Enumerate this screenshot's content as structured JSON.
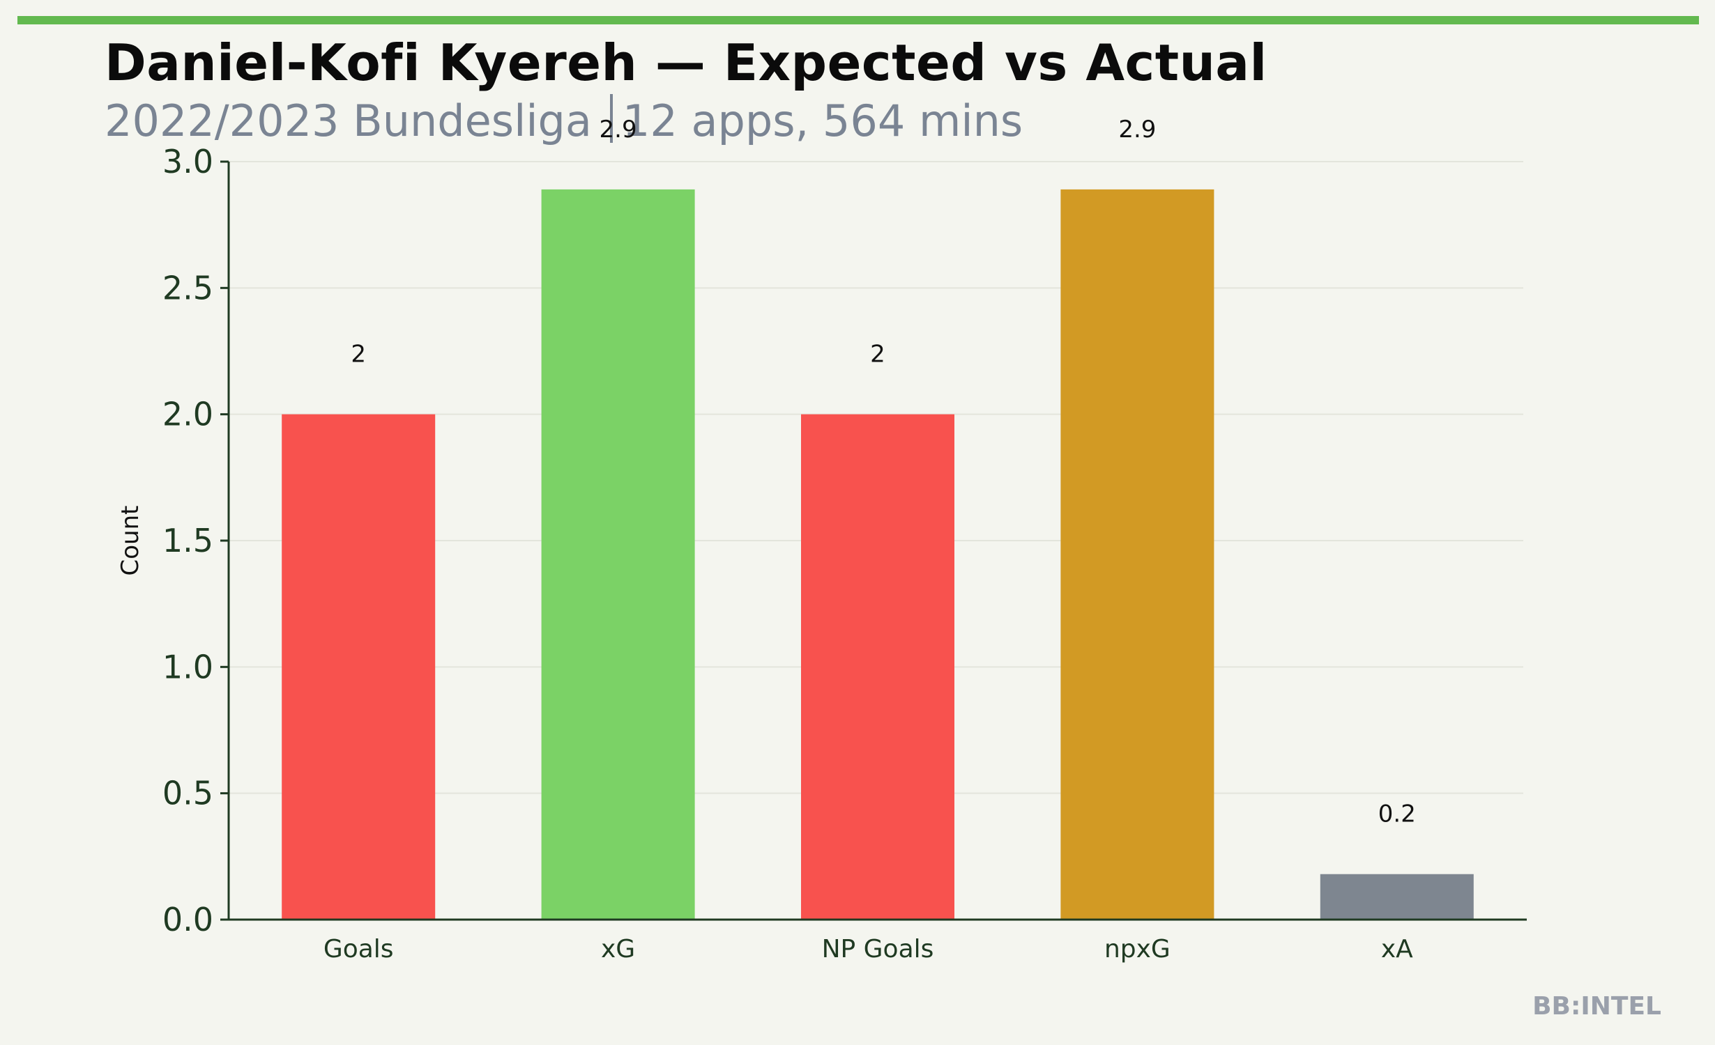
{
  "header": {
    "title": "Daniel-Kofi Kyereh — Expected vs Actual",
    "subtitle_league": "2022/2023 Bundesliga",
    "subtitle_stats": "12 apps, 564 mins"
  },
  "branding": "BB:INTEL",
  "colors": {
    "accent": "#62b94f",
    "goals": "#f8524e",
    "xg": "#7bd266",
    "npxg": "#d29a24",
    "xa": "#7e8690",
    "axis": "#1f3a22"
  },
  "chart_data": {
    "type": "bar",
    "categories": [
      "Goals",
      "xG",
      "NP Goals",
      "npxG",
      "xA"
    ],
    "values": [
      2,
      2.89,
      2,
      2.89,
      0.18
    ],
    "data_labels": [
      "2",
      "2.9",
      "2",
      "2.9",
      "0.2"
    ],
    "bar_colors": [
      "#f8524e",
      "#7bd266",
      "#f8524e",
      "#d29a24",
      "#7e8690"
    ],
    "ylabel": "Count",
    "xlabel": "",
    "ylim": [
      0,
      3.0
    ],
    "yticks": [
      0.0,
      0.5,
      1.0,
      1.5,
      2.0,
      2.5,
      3.0
    ],
    "ytick_labels": [
      "0.0",
      "0.5",
      "1.0",
      "1.5",
      "2.0",
      "2.5",
      "3.0"
    ],
    "grid": true
  }
}
